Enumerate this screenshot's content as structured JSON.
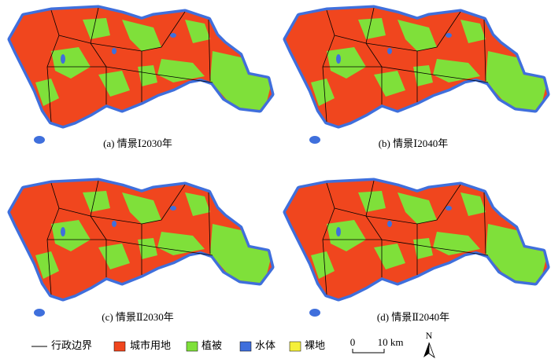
{
  "panels": [
    {
      "caption": "(a) 情景Ⅰ2030年"
    },
    {
      "caption": "(b) 情景Ⅰ2040年"
    },
    {
      "caption": "(c) 情景Ⅱ2030年"
    },
    {
      "caption": "(d) 情景Ⅱ2040年"
    }
  ],
  "legend": {
    "items": [
      "行政边界",
      "城市用地",
      "植被",
      "水体",
      "裸地"
    ]
  },
  "scale_bar": {
    "start": "0",
    "end": "10 km"
  },
  "north_arrow": "N"
}
